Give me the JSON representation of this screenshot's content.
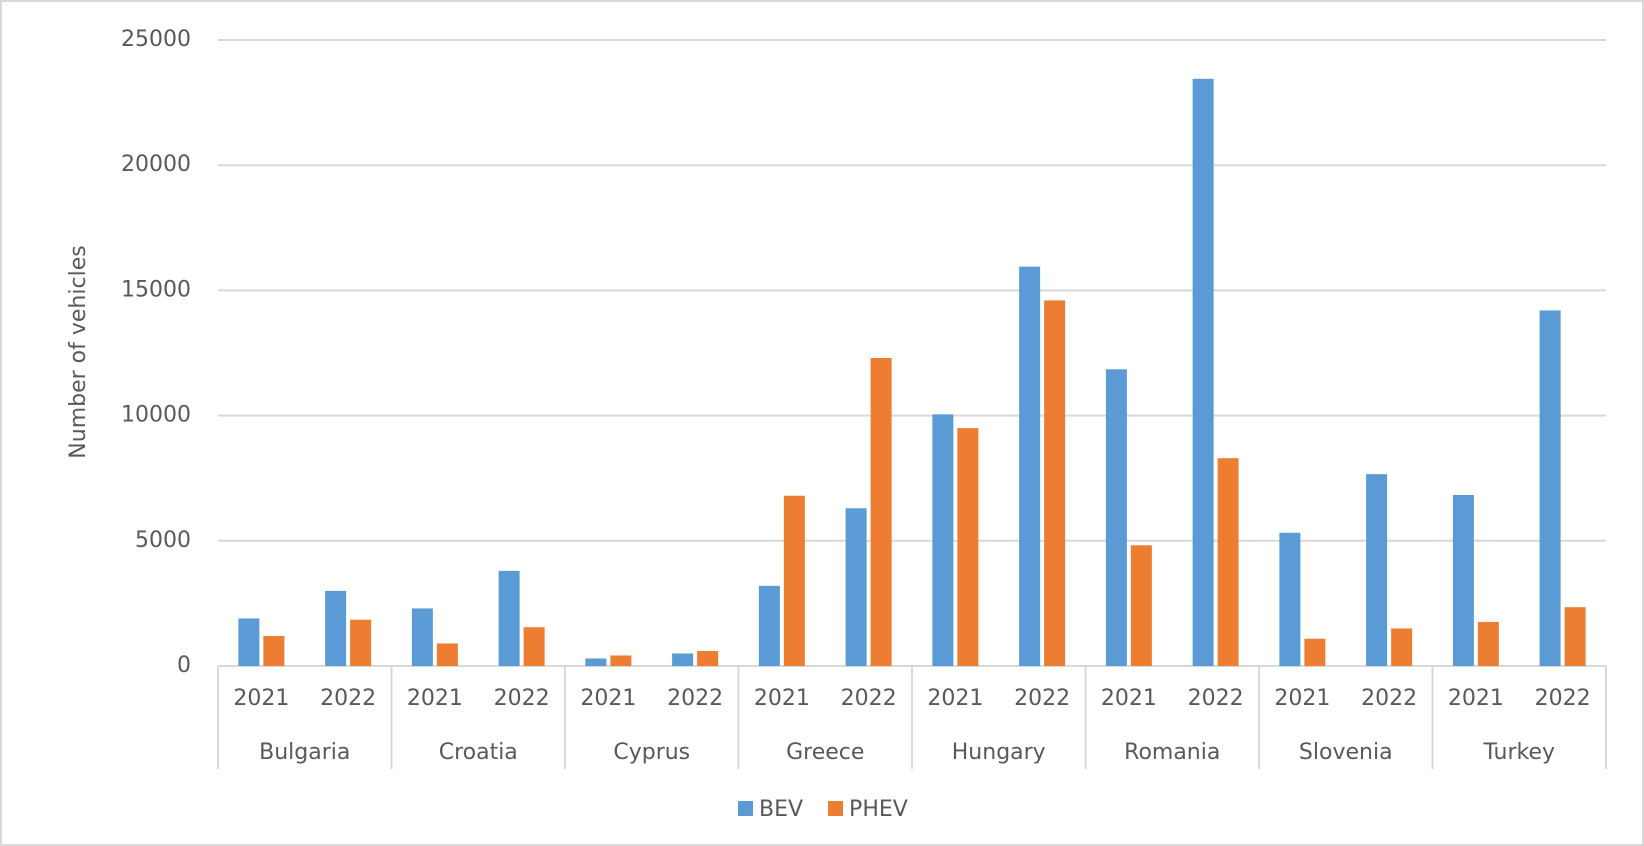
{
  "chart_data": {
    "type": "bar",
    "y_axis_label": "Number of vehicles",
    "categories": [
      "2021",
      "2022",
      "2021",
      "2022",
      "2021",
      "2022",
      "2021",
      "2022",
      "2021",
      "2022",
      "2021",
      "2022",
      "2021",
      "2022",
      "2021",
      "2022"
    ],
    "groups": [
      "Bulgaria",
      "Croatia",
      "Cyprus",
      "Greece",
      "Hungary",
      "Romania",
      "Slovenia",
      "Turkey"
    ],
    "series": [
      {
        "name": "BEV",
        "color": "#5b9bd5",
        "values": [
          1900,
          3000,
          2300,
          3800,
          300,
          500,
          3200,
          6300,
          10050,
          15950,
          11850,
          23450,
          5320,
          7660,
          6830,
          14200
        ]
      },
      {
        "name": "PHEV",
        "color": "#ed7d31",
        "values": [
          1200,
          1850,
          900,
          1550,
          420,
          600,
          6800,
          12300,
          9500,
          14600,
          4820,
          8300,
          1090,
          1500,
          1760,
          2350
        ]
      }
    ],
    "ylim": [
      0,
      25000
    ],
    "yticks": [
      0,
      5000,
      10000,
      15000,
      20000,
      25000
    ],
    "grid": true,
    "legend": "bottom"
  }
}
